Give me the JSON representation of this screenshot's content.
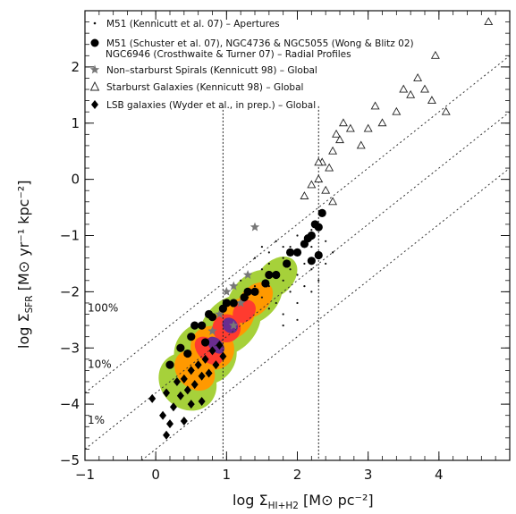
{
  "chart_data": {
    "type": "scatter",
    "xlabel": {
      "main": "log Σ",
      "sub": "HI+H2",
      "unit": " [M⊙ pc⁻²]"
    },
    "ylabel": {
      "main": "log Σ",
      "sub": "SFR",
      "unit": " [M⊙ yr⁻¹ kpc⁻²]"
    },
    "xlim": [
      -1,
      5
    ],
    "ylim": [
      -5,
      3
    ],
    "x_ticks": [
      "−1",
      "0",
      "1",
      "2",
      "3",
      "4"
    ],
    "y_ticks": [
      "−5",
      "−4",
      "−3",
      "−2",
      "−1",
      "0",
      "1",
      "2"
    ],
    "x_tick_values": [
      -1,
      0,
      1,
      2,
      3,
      4
    ],
    "y_tick_values": [
      -5,
      -4,
      -3,
      -2,
      -1,
      0,
      1,
      2
    ],
    "vertical_lines": [
      0.95,
      2.3
    ],
    "efficiency_lines": [
      {
        "label": "100%",
        "intercept": -2.8
      },
      {
        "label": "10%",
        "intercept": -3.8
      },
      {
        "label": "1%",
        "intercept": -4.8
      }
    ],
    "legend": [
      {
        "marker": "dot",
        "text": "M51 (Kennicutt et al. 07) – Apertures"
      },
      {
        "marker": "circle",
        "text": "M51 (Schuster et al. 07), NGC4736 & NGC5055 (Wong & Blitz 02)"
      },
      {
        "marker": "none",
        "text": "NGC6946 (Crosthwaite & Turner 07) – Radial Profiles"
      },
      {
        "marker": "star",
        "text": "Non–starburst Spirals (Kennicutt 98) – Global"
      },
      {
        "marker": "triangle",
        "text": "Starburst Galaxies (Kennicutt 98) – Global"
      },
      {
        "marker": "diamond",
        "text": "LSB galaxies (Wyder et al., in prep.) – Global"
      }
    ],
    "density_colors": [
      "#a6d13a",
      "#ff9900",
      "#ff3b2f",
      "#6a2c8f"
    ],
    "series": [
      {
        "name": "M51 (Kennicutt et al. 07) – Apertures",
        "marker": "dot",
        "points": [
          [
            1.5,
            -1.6
          ],
          [
            1.6,
            -1.5
          ],
          [
            1.7,
            -1.7
          ],
          [
            1.8,
            -1.4
          ],
          [
            1.9,
            -1.6
          ],
          [
            2.0,
            -1.3
          ],
          [
            2.1,
            -1.5
          ],
          [
            2.2,
            -1.2
          ],
          [
            1.4,
            -1.9
          ],
          [
            1.6,
            -1.9
          ],
          [
            1.8,
            -1.8
          ],
          [
            2.0,
            -1.7
          ],
          [
            2.2,
            -1.6
          ],
          [
            1.3,
            -1.7
          ],
          [
            1.5,
            -2.1
          ],
          [
            1.7,
            -2.2
          ],
          [
            1.9,
            -2.0
          ],
          [
            2.1,
            -1.9
          ],
          [
            2.3,
            -1.4
          ],
          [
            1.6,
            -1.3
          ],
          [
            1.8,
            -1.2
          ],
          [
            2.0,
            -1.0
          ],
          [
            2.2,
            -0.9
          ],
          [
            2.4,
            -1.1
          ],
          [
            2.0,
            -2.2
          ],
          [
            1.8,
            -2.4
          ],
          [
            1.6,
            -2.3
          ],
          [
            2.2,
            -2.0
          ],
          [
            1.9,
            -1.2
          ],
          [
            2.1,
            -1.1
          ],
          [
            1.4,
            -1.4
          ],
          [
            1.2,
            -1.8
          ],
          [
            1.7,
            -1.1
          ],
          [
            2.3,
            -1.8
          ],
          [
            2.5,
            -1.3
          ],
          [
            1.5,
            -1.2
          ],
          [
            2.0,
            -2.5
          ],
          [
            1.8,
            -2.6
          ],
          [
            1.3,
            -2.1
          ],
          [
            2.4,
            -1.5
          ]
        ]
      },
      {
        "name": "M51 (Schuster et al. 07), NGC4736 & NGC5055 (Wong & Blitz 02) / NGC6946 (Crosthwaite & Turner 07) – Radial Profiles",
        "marker": "circle",
        "points": [
          [
            0.2,
            -3.3
          ],
          [
            0.35,
            -3.0
          ],
          [
            0.5,
            -2.8
          ],
          [
            0.65,
            -2.6
          ],
          [
            0.8,
            -2.45
          ],
          [
            0.95,
            -2.3
          ],
          [
            1.1,
            -2.2
          ],
          [
            1.25,
            -2.1
          ],
          [
            1.4,
            -2.0
          ],
          [
            1.55,
            -1.85
          ],
          [
            1.7,
            -1.7
          ],
          [
            1.85,
            -1.5
          ],
          [
            2.0,
            -1.3
          ],
          [
            2.1,
            -1.15
          ],
          [
            2.2,
            -1.0
          ],
          [
            2.3,
            -0.85
          ],
          [
            2.35,
            -0.6
          ],
          [
            2.25,
            -0.8
          ],
          [
            0.55,
            -2.6
          ],
          [
            0.75,
            -2.4
          ],
          [
            1.0,
            -2.2
          ],
          [
            1.3,
            -2.0
          ],
          [
            1.6,
            -1.7
          ],
          [
            1.9,
            -1.3
          ],
          [
            2.15,
            -1.05
          ],
          [
            2.3,
            -1.35
          ],
          [
            2.2,
            -1.45
          ],
          [
            0.45,
            -3.1
          ],
          [
            0.7,
            -2.9
          ]
        ]
      },
      {
        "name": "Non–starburst Spirals (Kennicutt 98) – Global",
        "marker": "star",
        "points": [
          [
            1.0,
            -2.0
          ],
          [
            1.1,
            -1.9
          ],
          [
            1.2,
            -2.2
          ],
          [
            0.9,
            -2.4
          ],
          [
            1.3,
            -1.7
          ],
          [
            1.4,
            -0.85
          ],
          [
            1.1,
            -2.6
          ],
          [
            0.8,
            -2.7
          ]
        ]
      },
      {
        "name": "Starburst Galaxies (Kennicutt 98) – Global",
        "marker": "triangle",
        "points": [
          [
            2.1,
            -0.3
          ],
          [
            2.2,
            -0.1
          ],
          [
            2.3,
            0.0
          ],
          [
            2.35,
            0.3
          ],
          [
            2.45,
            0.2
          ],
          [
            2.5,
            0.5
          ],
          [
            2.55,
            0.8
          ],
          [
            2.6,
            0.7
          ],
          [
            2.65,
            1.0
          ],
          [
            2.75,
            0.9
          ],
          [
            2.9,
            0.6
          ],
          [
            3.0,
            0.9
          ],
          [
            3.1,
            1.3
          ],
          [
            3.2,
            1.0
          ],
          [
            3.4,
            1.2
          ],
          [
            3.5,
            1.6
          ],
          [
            3.6,
            1.5
          ],
          [
            3.7,
            1.8
          ],
          [
            3.8,
            1.6
          ],
          [
            3.9,
            1.4
          ],
          [
            3.95,
            2.2
          ],
          [
            4.1,
            1.2
          ],
          [
            4.7,
            2.8
          ],
          [
            2.4,
            -0.2
          ],
          [
            2.5,
            -0.4
          ],
          [
            2.3,
            0.3
          ]
        ]
      },
      {
        "name": "LSB galaxies (Wyder et al., in prep.) – Global",
        "marker": "diamond",
        "points": [
          [
            -0.05,
            -3.9
          ],
          [
            0.1,
            -4.2
          ],
          [
            0.15,
            -3.8
          ],
          [
            0.25,
            -4.05
          ],
          [
            0.3,
            -3.6
          ],
          [
            0.35,
            -3.85
          ],
          [
            0.4,
            -3.55
          ],
          [
            0.45,
            -3.75
          ],
          [
            0.5,
            -3.4
          ],
          [
            0.55,
            -3.65
          ],
          [
            0.6,
            -3.3
          ],
          [
            0.65,
            -3.5
          ],
          [
            0.7,
            -3.2
          ],
          [
            0.75,
            -3.45
          ],
          [
            0.8,
            -3.05
          ],
          [
            0.85,
            -3.3
          ],
          [
            0.9,
            -2.95
          ],
          [
            0.95,
            -3.15
          ],
          [
            0.2,
            -4.35
          ],
          [
            0.4,
            -4.3
          ],
          [
            0.5,
            -4.0
          ],
          [
            0.65,
            -3.95
          ],
          [
            0.15,
            -4.55
          ]
        ]
      }
    ]
  }
}
